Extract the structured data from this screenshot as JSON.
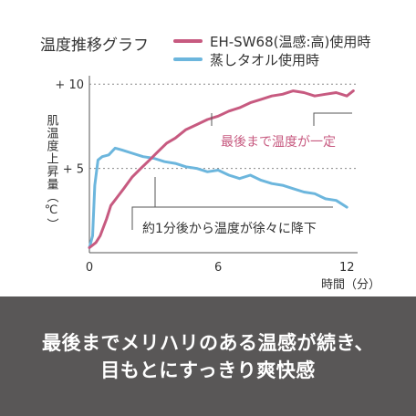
{
  "chart_data": {
    "type": "line",
    "title": "温度推移グラフ",
    "ylabel": "肌温度上昇量（℃）",
    "xlabel": "時間（分）",
    "x_ticks": [
      "0",
      "6",
      "12"
    ],
    "y_ticks": [
      "+ 5",
      "+ 10"
    ],
    "xlim": [
      0,
      12.5
    ],
    "ylim": [
      0,
      10.5
    ],
    "grid_lines_y": [
      5,
      10
    ],
    "legend_position": "top-right",
    "series": [
      {
        "name": "EH-SW68(温感:高)使用時",
        "color": "#c75a80",
        "x": [
          0,
          0.3,
          0.5,
          0.8,
          1.0,
          1.3,
          1.6,
          2.0,
          2.4,
          2.8,
          3.2,
          3.6,
          4.0,
          4.5,
          5.0,
          5.5,
          6.0,
          6.5,
          7.0,
          7.5,
          8.0,
          8.5,
          9.0,
          9.5,
          10.0,
          10.5,
          11.0,
          11.5,
          12.0,
          12.3
        ],
        "y": [
          0.3,
          0.6,
          1.0,
          2.0,
          2.8,
          3.3,
          3.8,
          4.5,
          5.0,
          5.5,
          6.0,
          6.5,
          6.8,
          7.3,
          7.6,
          7.9,
          8.1,
          8.4,
          8.6,
          8.9,
          9.1,
          9.3,
          9.4,
          9.6,
          9.5,
          9.3,
          9.4,
          9.5,
          9.3,
          9.6
        ]
      },
      {
        "name": "蒸しタオル使用時",
        "color": "#6cb6dd",
        "x": [
          0,
          0.15,
          0.25,
          0.4,
          0.6,
          0.9,
          1.2,
          1.5,
          2.0,
          2.5,
          3.0,
          3.5,
          4.0,
          4.5,
          5.0,
          5.5,
          6.0,
          6.5,
          7.0,
          7.5,
          8.0,
          8.5,
          9.0,
          9.5,
          10.0,
          10.5,
          11.0,
          11.5,
          12.0
        ],
        "y": [
          0.3,
          1.0,
          4.0,
          5.5,
          5.7,
          5.8,
          6.2,
          6.1,
          5.9,
          5.7,
          5.6,
          5.4,
          5.3,
          5.1,
          5.0,
          4.8,
          4.9,
          4.6,
          4.4,
          4.6,
          4.3,
          4.1,
          4.0,
          3.8,
          3.6,
          3.5,
          3.2,
          3.1,
          2.7
        ]
      }
    ],
    "annotations": [
      {
        "text": "最後まで温度が一定",
        "series": 0
      },
      {
        "text": "約1分後から温度が徐々に降下",
        "series": 1
      }
    ]
  },
  "caption": {
    "line1": "最後までメリハリのある温感が続き、",
    "line2": "目もとにすっきり爽快感"
  }
}
